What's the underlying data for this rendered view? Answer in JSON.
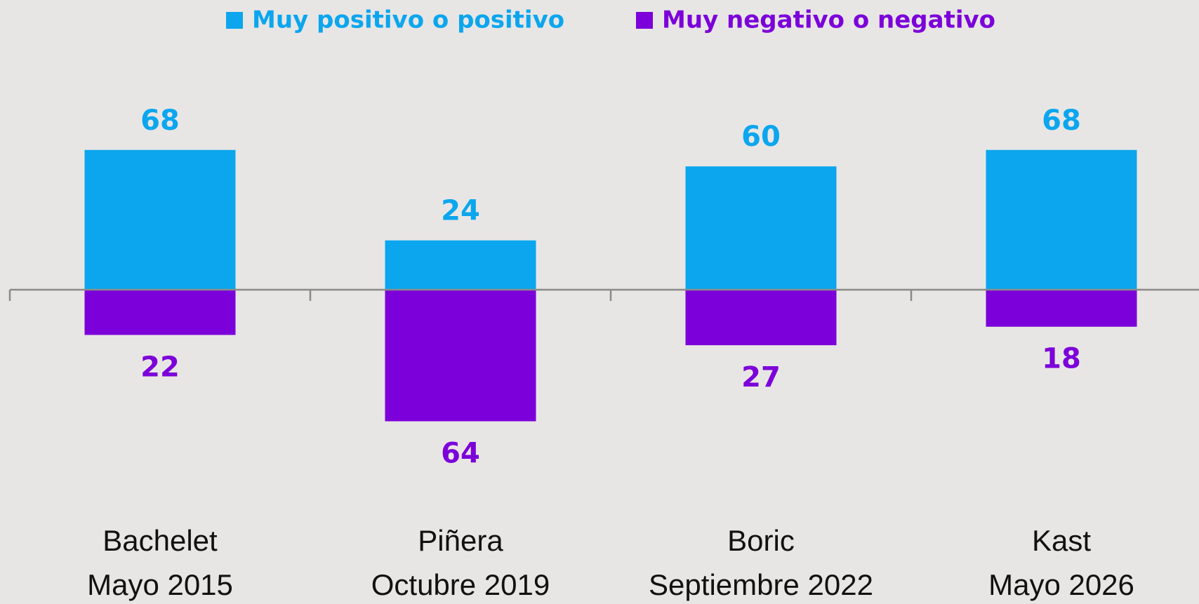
{
  "chart_data": {
    "type": "diverging_bar",
    "categories": [
      [
        "Bachelet",
        "Mayo 2015"
      ],
      [
        "Piñera",
        "Octubre 2019"
      ],
      [
        "Boric",
        "Septiembre 2022"
      ],
      [
        "Kast",
        "Mayo 2026"
      ]
    ],
    "series": [
      {
        "name": "Muy positivo o positivo",
        "color": "#0ba6ee",
        "values": [
          68,
          24,
          60,
          68
        ]
      },
      {
        "name": "Muy negativo o negativo",
        "color": "#7c00d9",
        "values": [
          22,
          64,
          27,
          18
        ]
      }
    ]
  }
}
